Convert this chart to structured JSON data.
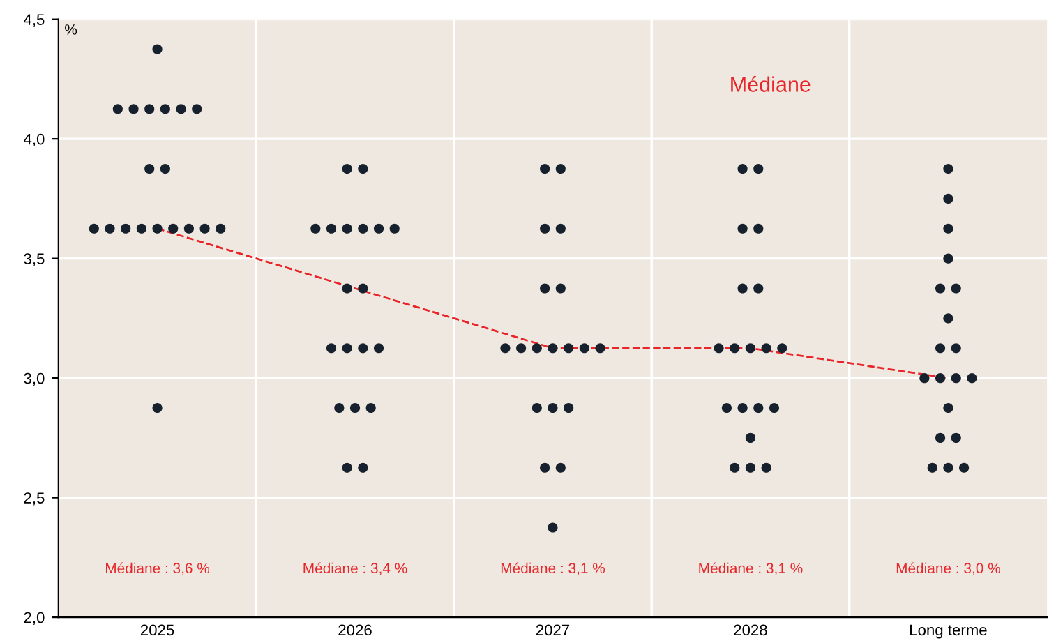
{
  "chart_data": {
    "type": "scatter",
    "ylabel": "%",
    "categories": [
      "2025",
      "2026",
      "2027",
      "2028",
      "Long terme"
    ],
    "ylim": [
      2.0,
      4.5
    ],
    "yticks": [
      {
        "value": 2.0,
        "label": "2,0"
      },
      {
        "value": 2.5,
        "label": "2,5"
      },
      {
        "value": 3.0,
        "label": "3,0"
      },
      {
        "value": 3.5,
        "label": "3,5"
      },
      {
        "value": 4.0,
        "label": "4,0"
      },
      {
        "value": 4.5,
        "label": "4,5"
      }
    ],
    "grid": true,
    "legend": false,
    "marker": "circle",
    "series": [
      {
        "color": "#17212e",
        "values": [
          4.375,
          3.875,
          3.875,
          3.875,
          3.875
        ]
      },
      {
        "color": "#17212e",
        "values": [
          4.125,
          3.875,
          3.875,
          3.875,
          3.75
        ]
      },
      {
        "color": "#17212e",
        "values": [
          4.125,
          3.625,
          3.625,
          3.625,
          3.625
        ]
      },
      {
        "color": "#17212e",
        "values": [
          4.125,
          3.625,
          3.625,
          3.625,
          3.5
        ]
      },
      {
        "color": "#17212e",
        "values": [
          4.125,
          3.625,
          3.375,
          3.375,
          3.375
        ]
      },
      {
        "color": "#17212e",
        "values": [
          4.125,
          3.625,
          3.375,
          3.375,
          3.375
        ]
      },
      {
        "color": "#17212e",
        "values": [
          4.125,
          3.625,
          3.125,
          3.125,
          3.25
        ]
      },
      {
        "color": "#17212e",
        "values": [
          3.875,
          3.625,
          3.125,
          3.125,
          3.125
        ]
      },
      {
        "color": "#17212e",
        "values": [
          3.875,
          3.375,
          3.125,
          3.125,
          3.125
        ]
      },
      {
        "color": "#17212e",
        "values": [
          3.625,
          3.375,
          3.125,
          3.125,
          3.0
        ]
      },
      {
        "color": "#17212e",
        "values": [
          3.625,
          3.125,
          3.125,
          3.125,
          3.0
        ]
      },
      {
        "color": "#17212e",
        "values": [
          3.625,
          3.125,
          3.125,
          2.875,
          3.0
        ]
      },
      {
        "color": "#17212e",
        "values": [
          3.625,
          3.125,
          3.125,
          2.875,
          3.0
        ]
      },
      {
        "color": "#17212e",
        "values": [
          3.625,
          3.125,
          2.875,
          2.875,
          2.875
        ]
      },
      {
        "color": "#17212e",
        "values": [
          3.625,
          2.875,
          2.875,
          2.875,
          2.75
        ]
      },
      {
        "color": "#17212e",
        "values": [
          3.625,
          2.875,
          2.875,
          2.75,
          2.75
        ]
      },
      {
        "color": "#17212e",
        "values": [
          3.625,
          2.875,
          2.625,
          2.625,
          2.625
        ]
      },
      {
        "color": "#17212e",
        "values": [
          3.625,
          2.625,
          2.625,
          2.625,
          2.625
        ]
      },
      {
        "color": "#17212e",
        "values": [
          2.875,
          2.625,
          2.375,
          2.625,
          2.625
        ]
      },
      {
        "type": "line",
        "name": "Médiane",
        "color": "#e8262a",
        "line_style": "dashed",
        "marker": "none",
        "values": [
          3.625,
          3.375,
          3.125,
          3.125,
          3.0
        ]
      }
    ],
    "annotations": [
      "Médiane : 3,6 %",
      "Médiane : 3,4 %",
      "Médiane : 3,1 %",
      "Médiane : 3,1 %",
      "Médiane : 3,0 %"
    ]
  }
}
